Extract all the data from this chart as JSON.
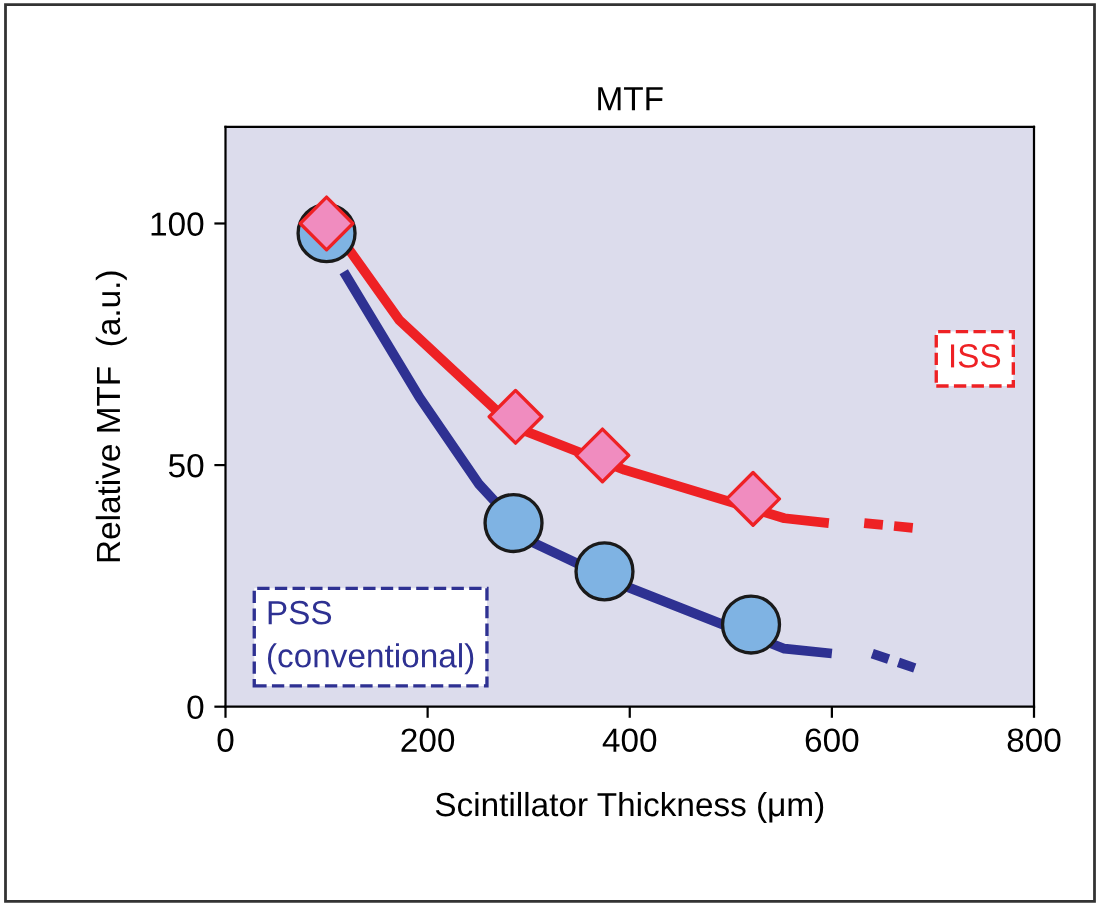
{
  "chart_data": {
    "type": "line",
    "title": "MTF",
    "xlabel": "Scintillator Thickness (μm)",
    "ylabel": "Relative MTF  (a.u.)",
    "xlim": [
      0,
      800
    ],
    "xticks": [
      0,
      200,
      400,
      600,
      800
    ],
    "ylim": [
      0,
      120
    ],
    "yticks": [
      0,
      50,
      100
    ],
    "grid": false,
    "legend": false,
    "series": [
      {
        "name": "ISS",
        "color": "#ee2124",
        "line_style": "solid",
        "marker": "none",
        "x": [
          97,
          172,
          285,
          395,
          553,
          597
        ],
        "values": [
          102,
          80,
          58,
          49,
          39,
          38
        ]
      },
      {
        "color": "#ee2124",
        "line_style": "dashed",
        "marker": "none",
        "x": [
          632,
          680
        ],
        "values": [
          38,
          37
        ]
      },
      {
        "name": "PSS\n(conventional)",
        "color": "#2e3192",
        "line_style": "solid",
        "marker": "none",
        "x": [
          117,
          192,
          251,
          304,
          395,
          553,
          600
        ],
        "values": [
          90,
          64,
          46,
          34,
          25,
          12,
          11
        ]
      },
      {
        "color": "#2e3192",
        "line_style": "dashed",
        "marker": "none",
        "x": [
          640,
          682
        ],
        "values": [
          11,
          8
        ]
      },
      {
        "type": "scatter",
        "color": "#7fb3e3",
        "marker": "circle",
        "x": [
          100,
          285,
          375,
          520
        ],
        "values": [
          98,
          38,
          28,
          17
        ]
      },
      {
        "type": "scatter",
        "color": "#f08cbf",
        "marker": "diamond",
        "x": [
          100,
          287,
          373,
          522
        ],
        "values": [
          100,
          60,
          52,
          43
        ]
      }
    ]
  }
}
